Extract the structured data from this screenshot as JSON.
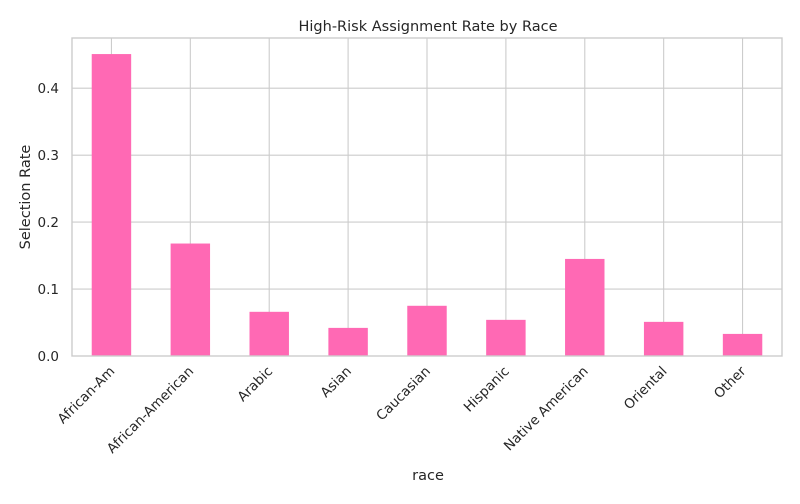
{
  "chart_data": {
    "type": "bar",
    "title": "High-Risk Assignment Rate by Race",
    "xlabel": "race",
    "ylabel": "Selection Rate",
    "categories": [
      "African-Am",
      "African-American",
      "Arabic",
      "Asian",
      "Caucasian",
      "Hispanic",
      "Native American",
      "Oriental",
      "Other"
    ],
    "values": [
      0.451,
      0.168,
      0.066,
      0.042,
      0.075,
      0.054,
      0.145,
      0.051,
      0.033
    ],
    "ylim": [
      0,
      0.475
    ],
    "yticks": [
      0.0,
      0.1,
      0.2,
      0.3,
      0.4
    ],
    "ytick_labels": [
      "0.0",
      "0.1",
      "0.2",
      "0.3",
      "0.4"
    ],
    "grid": true,
    "bar_color": "#ff69b4",
    "grid_color": "#cccccc",
    "spine_color": "#cccccc"
  }
}
